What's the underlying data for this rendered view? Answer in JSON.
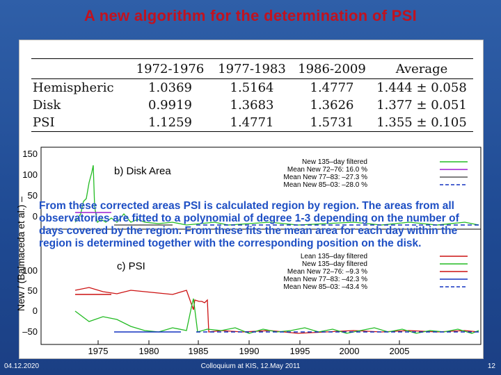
{
  "slide": {
    "title": "A new algorithm for the determination of PSI",
    "footer_left": "04.12.2020",
    "footer_center": "Colloquium at KIS, 12.May 2011",
    "footer_right": "12"
  },
  "table": {
    "headers": [
      "",
      "1972-1976",
      "1977-1983",
      "1986-2009",
      "Average"
    ],
    "rows": [
      [
        "Hemispheric",
        "1.0369",
        "1.5164",
        "1.4777",
        "1.444 ± 0.058"
      ],
      [
        "Disk",
        "0.9919",
        "1.3683",
        "1.3626",
        "1.377 ± 0.051"
      ],
      [
        "PSI",
        "1.1259",
        "1.4771",
        "1.5731",
        "1.355 ± 0.105"
      ]
    ]
  },
  "figure": {
    "ylabel": "New / (Balmaceda et al.) –",
    "panel_b": {
      "label": "b) Disk Area",
      "yticks": [
        "150",
        "100",
        "50",
        "0"
      ],
      "legend": [
        {
          "text": "New 135–day filtered",
          "color": "#22bb22",
          "dash": "solid"
        },
        {
          "text": "Mean New 72–76:  16.0 %",
          "color": "#9b1fd1",
          "dash": "solid"
        },
        {
          "text": "Mean New 77–83: –27.3 %",
          "color": "#555555",
          "dash": "solid"
        },
        {
          "text": "Mean New 85–03: –28.0 %",
          "color": "#1030c0",
          "dash": "dashed"
        }
      ]
    },
    "panel_c": {
      "label": "c) PSI",
      "yticks": [
        "100",
        "50",
        "0",
        "–50"
      ],
      "legend": [
        {
          "text": "Lean 135–day filtered",
          "color": "#cc1111",
          "dash": "solid"
        },
        {
          "text": "New 135–day filtered",
          "color": "#22bb22",
          "dash": "solid"
        },
        {
          "text": "Mean New 72–76:  –9.3 %",
          "color": "#cc1111",
          "dash": "solid"
        },
        {
          "text": "Mean New 77–83: –42.3 %",
          "color": "#1030c0",
          "dash": "solid"
        },
        {
          "text": "Mean New 85–03: –43.4 %",
          "color": "#1030c0",
          "dash": "dashed"
        }
      ]
    },
    "xticks": [
      "1975",
      "1980",
      "1985",
      "1990",
      "1995",
      "2000",
      "2005"
    ]
  },
  "overlay_text": "From these corrected areas PSI is calculated region by region. The areas from all observatories are fitted to a polynomial of degree 1-3 depending on the number of days covered by the region. From these fits the mean area for each day within the region is determined together with the corresponding position on the disk.",
  "colors": {
    "title": "#c1121f",
    "overlay_text": "#1e4fc4",
    "background": "#1f4a93"
  }
}
